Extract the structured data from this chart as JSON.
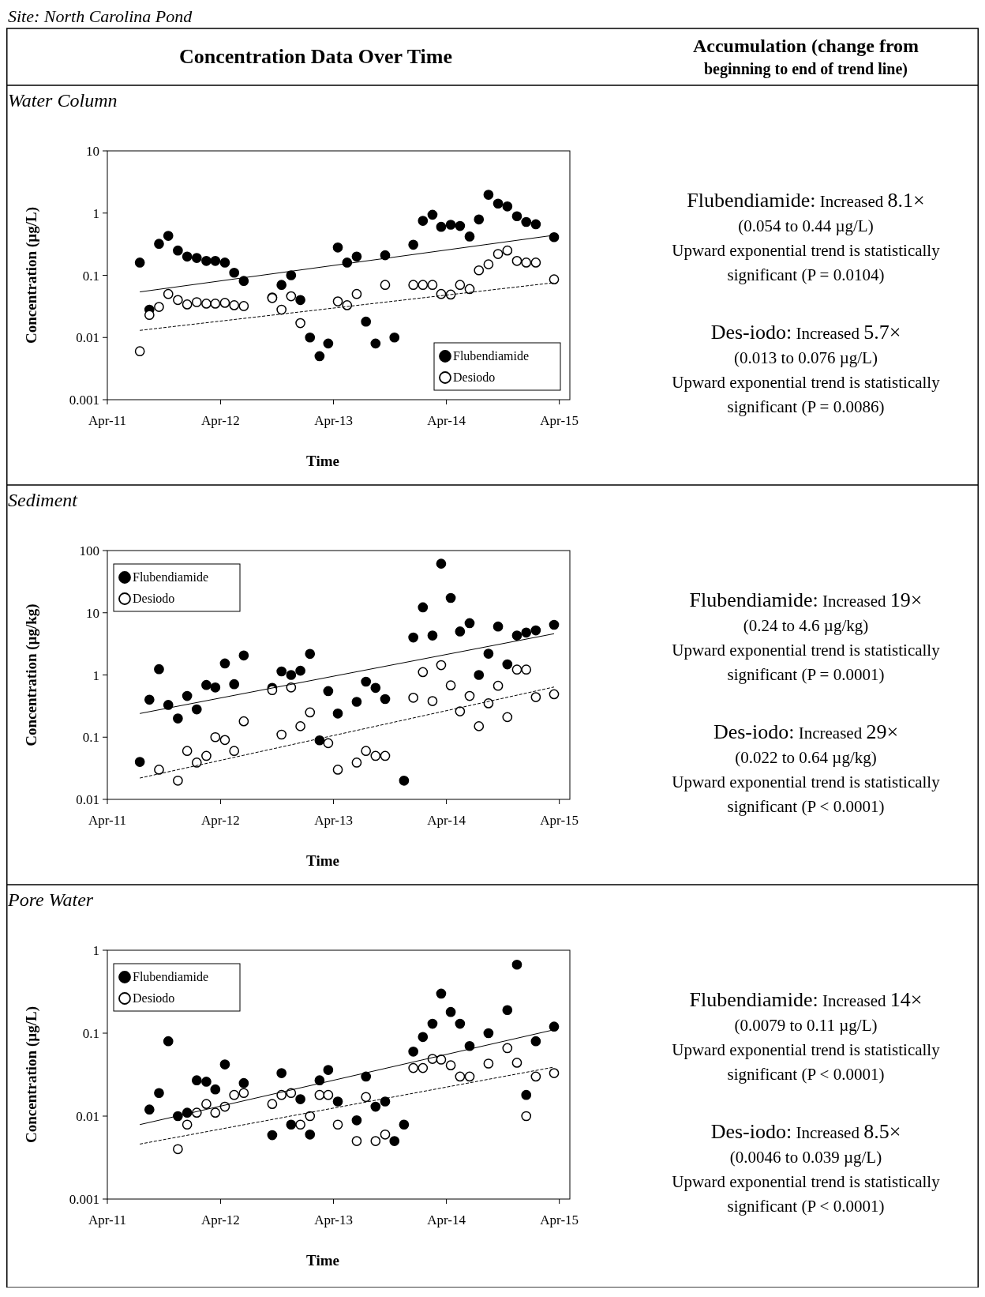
{
  "chart_data": [
    {
      "type": "other",
      "title": "Site: North Carolina Pond",
      "annotations": [
        "Concentration Data Over Time",
        "Accumulation (change from",
        "beginning to end of trend line)"
      ]
    },
    {
      "type": "scatter",
      "title": "Water Column",
      "xlabel": "Time",
      "ylabel": "Concentration (µg/L)",
      "log": true,
      "ylim": [
        0.001,
        10
      ],
      "yticks": [
        0.001,
        0.01,
        0.1,
        1,
        10
      ],
      "xlim": [
        "2011-04-01",
        "2015-05-05"
      ],
      "xticks": [
        {
          "value": "2011-04-01",
          "label": "Apr-11"
        },
        {
          "value": "2012-04-01",
          "label": "Apr-12"
        },
        {
          "value": "2013-04-01",
          "label": "Apr-13"
        },
        {
          "value": "2014-04-01",
          "label": "Apr-14"
        },
        {
          "value": "2015-04-01",
          "label": "Apr-15"
        }
      ],
      "legend": "bottom right",
      "marker": "circle",
      "series": [
        {
          "name": "Flubendiamide",
          "color": "#000000",
          "x": [
            "2011-07-15",
            "2011-08-15",
            "2011-09-15",
            "2011-10-15",
            "2011-11-15",
            "2011-12-15",
            "2012-01-15",
            "2012-02-15",
            "2012-03-15",
            "2012-04-15",
            "2012-05-15",
            "2012-06-15",
            "2012-09-15",
            "2012-10-15",
            "2012-11-15",
            "2012-12-15",
            "2013-01-15",
            "2013-02-15",
            "2013-03-15",
            "2013-04-15",
            "2013-05-15",
            "2013-06-15",
            "2013-07-15",
            "2013-08-15",
            "2013-09-15",
            "2013-10-15",
            "2013-12-15",
            "2014-01-15",
            "2014-02-15",
            "2014-03-15",
            "2014-04-15",
            "2014-05-15",
            "2014-06-15",
            "2014-07-15",
            "2014-08-15",
            "2014-09-15",
            "2014-10-15",
            "2014-11-15",
            "2014-12-15",
            "2015-01-15",
            "2015-03-15"
          ],
          "values": [
            0.16,
            0.028,
            0.32,
            0.43,
            0.25,
            0.2,
            0.19,
            0.17,
            0.17,
            0.16,
            0.11,
            0.081,
            0.044,
            0.07,
            0.1,
            0.04,
            0.01,
            0.005,
            0.008,
            0.28,
            0.16,
            0.2,
            0.018,
            0.008,
            0.21,
            0.01,
            0.31,
            0.75,
            0.94,
            0.6,
            0.65,
            0.62,
            0.42,
            0.79,
            1.97,
            1.42,
            1.28,
            0.89,
            0.72,
            0.66,
            0.41
          ]
        },
        {
          "name": "Desiodo",
          "color": "#ffffff",
          "x": [
            "2011-07-15",
            "2011-08-15",
            "2011-09-15",
            "2011-10-15",
            "2011-11-15",
            "2011-12-15",
            "2012-01-15",
            "2012-02-15",
            "2012-03-15",
            "2012-04-15",
            "2012-05-15",
            "2012-06-15",
            "2012-09-15",
            "2012-10-15",
            "2012-11-15",
            "2012-12-15",
            "2013-04-15",
            "2013-05-15",
            "2013-06-15",
            "2013-09-15",
            "2013-12-15",
            "2014-01-15",
            "2014-02-15",
            "2014-03-15",
            "2014-04-15",
            "2014-05-15",
            "2014-06-15",
            "2014-07-15",
            "2014-08-15",
            "2014-09-15",
            "2014-10-15",
            "2014-11-15",
            "2014-12-15",
            "2015-01-15",
            "2015-03-15"
          ],
          "values": [
            0.006,
            0.023,
            0.031,
            0.05,
            0.04,
            0.034,
            0.037,
            0.035,
            0.035,
            0.036,
            0.033,
            0.032,
            0.043,
            0.028,
            0.046,
            0.017,
            0.038,
            0.033,
            0.05,
            0.07,
            0.07,
            0.07,
            0.07,
            0.05,
            0.049,
            0.07,
            0.06,
            0.12,
            0.15,
            0.22,
            0.25,
            0.17,
            0.16,
            0.16,
            0.086
          ]
        },
        {
          "type": "line",
          "marker": "none",
          "color": "#000000",
          "line_style": "solid",
          "x": [
            "2011-07-15",
            "2015-03-15"
          ],
          "values": [
            0.054,
            0.44
          ]
        },
        {
          "type": "line",
          "marker": "none",
          "color": "#000000",
          "line_style": "dashed",
          "x": [
            "2011-07-15",
            "2015-03-15"
          ],
          "values": [
            0.013,
            0.076
          ]
        }
      ],
      "annotations": [
        "Flubendiamide: Increased 8.1×",
        "(0.054 to 0.44 µg/L)",
        "Upward exponential trend is statistically",
        "significant (P = 0.0104)",
        "Des-iodo: Increased 5.7×",
        "(0.013 to 0.076 µg/L)",
        "Upward exponential trend is statistically",
        "significant (P = 0.0086)"
      ]
    },
    {
      "type": "scatter",
      "title": "Sediment",
      "xlabel": "Time",
      "ylabel": "Concentration (µg/kg)",
      "log": true,
      "ylim": [
        0.01,
        100
      ],
      "yticks": [
        0.01,
        0.1,
        1,
        10,
        100
      ],
      "xlim": [
        "2011-04-01",
        "2015-05-05"
      ],
      "xticks": [
        {
          "value": "2011-04-01",
          "label": "Apr-11"
        },
        {
          "value": "2012-04-01",
          "label": "Apr-12"
        },
        {
          "value": "2013-04-01",
          "label": "Apr-13"
        },
        {
          "value": "2014-04-01",
          "label": "Apr-14"
        },
        {
          "value": "2015-04-01",
          "label": "Apr-15"
        }
      ],
      "legend": "top left",
      "marker": "circle",
      "series": [
        {
          "name": "Flubendiamide",
          "color": "#000000",
          "x": [
            "2011-07-15",
            "2011-08-15",
            "2011-09-15",
            "2011-10-15",
            "2011-11-15",
            "2011-12-15",
            "2012-01-15",
            "2012-02-15",
            "2012-03-15",
            "2012-04-15",
            "2012-05-15",
            "2012-06-15",
            "2012-09-15",
            "2012-10-15",
            "2012-11-15",
            "2012-12-15",
            "2013-01-15",
            "2013-02-15",
            "2013-03-15",
            "2013-04-15",
            "2013-06-15",
            "2013-07-15",
            "2013-08-15",
            "2013-09-15",
            "2013-11-15",
            "2013-12-15",
            "2014-01-15",
            "2014-02-15",
            "2014-03-15",
            "2014-04-15",
            "2014-05-15",
            "2014-06-15",
            "2014-07-15",
            "2014-08-15",
            "2014-09-15",
            "2014-10-15",
            "2014-11-15",
            "2014-12-15",
            "2015-01-15",
            "2015-03-15"
          ],
          "values": [
            0.04,
            0.4,
            1.24,
            0.33,
            0.2,
            0.46,
            0.28,
            0.69,
            0.63,
            1.53,
            0.71,
            2.06,
            0.62,
            1.14,
            1.0,
            1.17,
            2.18,
            0.089,
            0.55,
            0.24,
            0.37,
            0.78,
            0.62,
            0.41,
            0.02,
            4.0,
            12.2,
            4.3,
            61.5,
            17.3,
            5.0,
            6.8,
            1.0,
            2.2,
            6.0,
            1.48,
            4.3,
            4.8,
            5.2,
            6.4
          ]
        },
        {
          "name": "Desiodo",
          "color": "#ffffff",
          "x": [
            "2011-09-15",
            "2011-11-15",
            "2011-12-15",
            "2012-01-15",
            "2012-02-15",
            "2012-03-15",
            "2012-04-15",
            "2012-05-15",
            "2012-06-15",
            "2012-09-15",
            "2012-10-15",
            "2012-11-15",
            "2012-12-15",
            "2013-01-15",
            "2013-03-15",
            "2013-04-15",
            "2013-06-15",
            "2013-07-15",
            "2013-08-15",
            "2013-09-15",
            "2013-12-15",
            "2014-01-15",
            "2014-02-15",
            "2014-03-15",
            "2014-04-15",
            "2014-05-15",
            "2014-06-15",
            "2014-07-15",
            "2014-08-15",
            "2014-09-15",
            "2014-10-15",
            "2014-11-15",
            "2014-12-15",
            "2015-01-15",
            "2015-03-15"
          ],
          "values": [
            0.03,
            0.02,
            0.06,
            0.039,
            0.05,
            0.1,
            0.09,
            0.06,
            0.18,
            0.57,
            0.11,
            0.63,
            0.15,
            0.25,
            0.08,
            0.03,
            0.039,
            0.06,
            0.05,
            0.05,
            0.43,
            1.11,
            0.38,
            1.44,
            0.68,
            0.26,
            0.46,
            0.15,
            0.35,
            0.67,
            0.21,
            1.22,
            1.22,
            0.44,
            0.49
          ]
        },
        {
          "type": "line",
          "marker": "none",
          "color": "#000000",
          "line_style": "solid",
          "x": [
            "2011-07-15",
            "2015-03-15"
          ],
          "values": [
            0.24,
            4.6
          ]
        },
        {
          "type": "line",
          "marker": "none",
          "color": "#000000",
          "line_style": "dashed",
          "x": [
            "2011-07-15",
            "2015-03-15"
          ],
          "values": [
            0.022,
            0.64
          ]
        }
      ],
      "annotations": [
        "Flubendiamide: Increased 19×",
        "(0.24 to 4.6 µg/kg)",
        "Upward exponential trend is statistically",
        "significant (P = 0.0001)",
        "Des-iodo: Increased 29×",
        "(0.022 to 0.64 µg/kg)",
        "Upward exponential trend is statistically",
        "significant (P < 0.0001)"
      ]
    },
    {
      "type": "scatter",
      "title": "Pore Water",
      "xlabel": "Time",
      "ylabel": "Concentration (µg/L)",
      "log": true,
      "ylim": [
        0.001,
        1
      ],
      "yticks": [
        0.001,
        0.01,
        0.1,
        1
      ],
      "xlim": [
        "2011-04-01",
        "2015-05-05"
      ],
      "xticks": [
        {
          "value": "2011-04-01",
          "label": "Apr-11"
        },
        {
          "value": "2012-04-01",
          "label": "Apr-12"
        },
        {
          "value": "2013-04-01",
          "label": "Apr-13"
        },
        {
          "value": "2014-04-01",
          "label": "Apr-14"
        },
        {
          "value": "2015-04-01",
          "label": "Apr-15"
        }
      ],
      "legend": "top left",
      "marker": "circle",
      "series": [
        {
          "name": "Flubendiamide",
          "color": "#000000",
          "x": [
            "2011-08-15",
            "2011-09-15",
            "2011-10-15",
            "2011-11-15",
            "2011-12-15",
            "2012-01-15",
            "2012-02-15",
            "2012-03-15",
            "2012-04-15",
            "2012-06-15",
            "2012-09-15",
            "2012-10-15",
            "2012-11-15",
            "2012-12-15",
            "2013-01-15",
            "2013-02-15",
            "2013-03-15",
            "2013-04-15",
            "2013-06-15",
            "2013-07-15",
            "2013-08-15",
            "2013-09-15",
            "2013-10-15",
            "2013-11-15",
            "2013-12-15",
            "2014-01-15",
            "2014-02-15",
            "2014-03-15",
            "2014-04-15",
            "2014-05-15",
            "2014-06-15",
            "2014-08-15",
            "2014-10-15",
            "2014-11-15",
            "2014-12-15",
            "2015-01-15",
            "2015-03-15"
          ],
          "values": [
            0.012,
            0.019,
            0.08,
            0.01,
            0.011,
            0.027,
            0.026,
            0.021,
            0.042,
            0.025,
            0.0059,
            0.033,
            0.0079,
            0.016,
            0.006,
            0.027,
            0.036,
            0.015,
            0.0089,
            0.03,
            0.013,
            0.015,
            0.005,
            0.0079,
            0.06,
            0.09,
            0.13,
            0.3,
            0.18,
            0.13,
            0.07,
            0.1,
            0.19,
            0.67,
            0.018,
            0.08,
            0.12
          ]
        },
        {
          "name": "Desiodo",
          "color": "#ffffff",
          "x": [
            "2011-11-15",
            "2011-12-15",
            "2012-01-15",
            "2012-02-15",
            "2012-03-15",
            "2012-04-15",
            "2012-05-15",
            "2012-06-15",
            "2012-09-15",
            "2012-10-15",
            "2012-11-15",
            "2012-12-15",
            "2013-01-15",
            "2013-02-15",
            "2013-03-15",
            "2013-04-15",
            "2013-06-15",
            "2013-07-15",
            "2013-08-15",
            "2013-09-15",
            "2013-12-15",
            "2014-01-15",
            "2014-02-15",
            "2014-03-15",
            "2014-04-15",
            "2014-05-15",
            "2014-06-15",
            "2014-08-15",
            "2014-10-15",
            "2014-11-15",
            "2014-12-15",
            "2015-01-15",
            "2015-03-15"
          ],
          "values": [
            0.004,
            0.0079,
            0.011,
            0.014,
            0.011,
            0.013,
            0.018,
            0.019,
            0.014,
            0.018,
            0.019,
            0.0079,
            0.01,
            0.018,
            0.018,
            0.0079,
            0.005,
            0.017,
            0.005,
            0.006,
            0.038,
            0.038,
            0.049,
            0.048,
            0.041,
            0.03,
            0.03,
            0.043,
            0.066,
            0.044,
            0.01,
            0.03,
            0.033
          ]
        },
        {
          "type": "line",
          "marker": "none",
          "color": "#000000",
          "line_style": "solid",
          "x": [
            "2011-07-15",
            "2015-03-15"
          ],
          "values": [
            0.0079,
            0.11
          ]
        },
        {
          "type": "line",
          "marker": "none",
          "color": "#000000",
          "line_style": "dashed",
          "x": [
            "2011-07-15",
            "2015-03-15"
          ],
          "values": [
            0.0046,
            0.039
          ]
        }
      ],
      "annotations": [
        "Flubendiamide: Increased 14×",
        "(0.0079 to 0.11 µg/L)",
        "Upward exponential trend is statistically",
        "significant (P < 0.0001)",
        "Des-iodo: Increased 8.5×",
        "(0.0046 to 0.039 µg/L)",
        "Upward exponential trend is statistically",
        "significant (P < 0.0001)"
      ]
    }
  ]
}
